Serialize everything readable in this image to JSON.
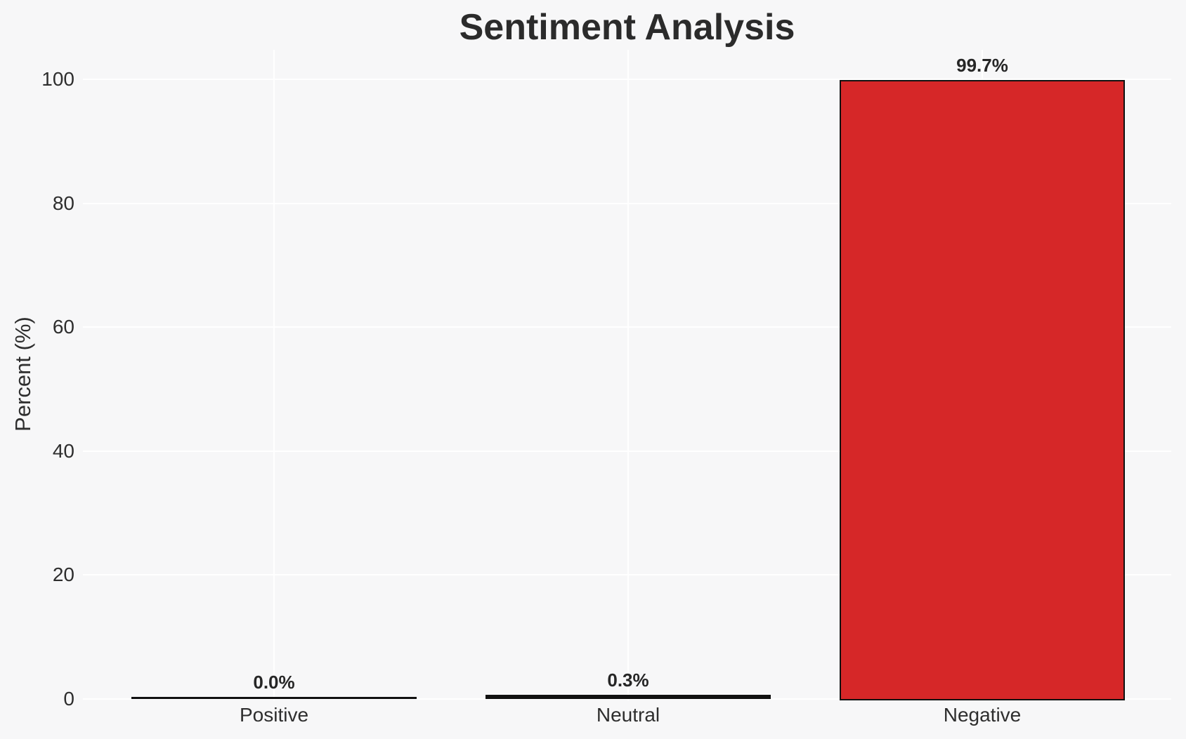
{
  "chart_data": {
    "type": "bar",
    "title": "Sentiment Analysis",
    "xlabel": "",
    "ylabel": "Percent (%)",
    "categories": [
      "Positive",
      "Neutral",
      "Negative"
    ],
    "values": [
      0.0,
      0.3,
      99.7
    ],
    "value_labels": [
      "0.0%",
      "0.3%",
      "99.7%"
    ],
    "yticks": [
      0,
      20,
      40,
      60,
      80,
      100
    ],
    "ylim": [
      0,
      105
    ],
    "grid": "on",
    "legend": "none",
    "colors": {
      "background": "#f7f7f8",
      "gridline": "#ffffff",
      "bar_fill": "#d62728",
      "bar_edge": "#111111",
      "text": "#2e2e2e"
    }
  }
}
